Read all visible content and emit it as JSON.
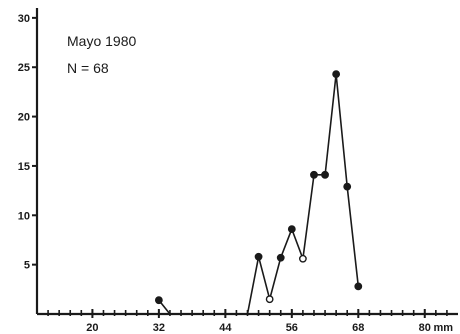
{
  "chart_data": {
    "type": "line",
    "title": "",
    "xlabel": "",
    "ylabel": "",
    "annotations": {
      "line1": "Mayo 1980",
      "line2": "N = 68"
    },
    "x_unit": "mm",
    "xlim": [
      10,
      86
    ],
    "ylim": [
      0,
      31
    ],
    "x_ticks": [
      20,
      32,
      44,
      56,
      68,
      80
    ],
    "y_ticks": [
      5,
      10,
      15,
      20,
      25,
      30
    ],
    "grid": false,
    "legend": "none",
    "line_color": "#1a1a1a",
    "segments": [
      {
        "x": [
          32,
          34
        ],
        "y": [
          1.4,
          0
        ]
      },
      {
        "x": [
          48,
          50,
          52,
          54,
          56,
          58,
          60,
          62,
          64,
          66,
          68
        ],
        "y": [
          0,
          5.8,
          1.5,
          5.7,
          8.6,
          5.6,
          14.1,
          14.1,
          24.3,
          12.9,
          2.8
        ]
      }
    ],
    "markers": [
      {
        "x": 32,
        "y": 1.4,
        "filled": true
      },
      {
        "x": 50,
        "y": 5.8,
        "filled": true
      },
      {
        "x": 52,
        "y": 1.5,
        "filled": false
      },
      {
        "x": 54,
        "y": 5.7,
        "filled": true
      },
      {
        "x": 56,
        "y": 8.6,
        "filled": true
      },
      {
        "x": 58,
        "y": 5.6,
        "filled": false
      },
      {
        "x": 60,
        "y": 14.1,
        "filled": true
      },
      {
        "x": 62,
        "y": 14.1,
        "filled": true
      },
      {
        "x": 64,
        "y": 24.3,
        "filled": true
      },
      {
        "x": 66,
        "y": 12.9,
        "filled": true
      },
      {
        "x": 68,
        "y": 2.8,
        "filled": true
      }
    ]
  }
}
